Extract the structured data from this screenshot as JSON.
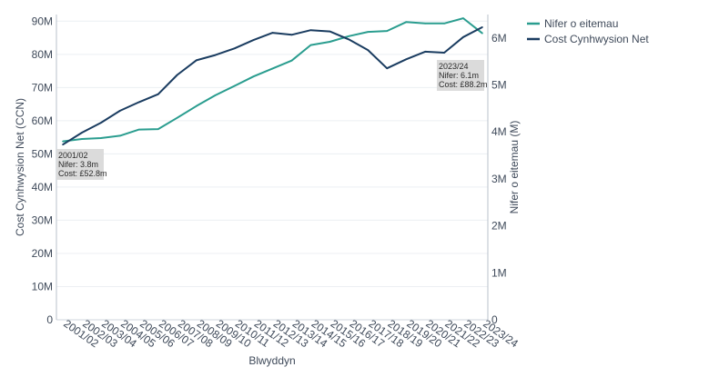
{
  "chart_data": {
    "type": "line",
    "xlabel": "Blwyddyn",
    "ylabel": "Cost Cynhwysion Net (CCN)",
    "y2label": "Nifer o eitemau (M)",
    "ylim": [
      0,
      92000000
    ],
    "y2lim": [
      0,
      6.5
    ],
    "yticks": [
      {
        "value": 0,
        "label": "0"
      },
      {
        "value": 10000000,
        "label": "10M"
      },
      {
        "value": 20000000,
        "label": "20M"
      },
      {
        "value": 30000000,
        "label": "30M"
      },
      {
        "value": 40000000,
        "label": "40M"
      },
      {
        "value": 50000000,
        "label": "50M"
      },
      {
        "value": 60000000,
        "label": "60M"
      },
      {
        "value": 70000000,
        "label": "70M"
      },
      {
        "value": 80000000,
        "label": "80M"
      },
      {
        "value": 90000000,
        "label": "90M"
      }
    ],
    "y2ticks": [
      {
        "value": 0,
        "label": "0"
      },
      {
        "value": 1,
        "label": "1M"
      },
      {
        "value": 2,
        "label": "2M"
      },
      {
        "value": 3,
        "label": "3M"
      },
      {
        "value": 4,
        "label": "4M"
      },
      {
        "value": 5,
        "label": "5M"
      },
      {
        "value": 6,
        "label": "6M"
      }
    ],
    "categories": [
      "2001/02",
      "2002/03",
      "2003/04",
      "2004/05",
      "2005/06",
      "2006/07",
      "2007/08",
      "2008/09",
      "2009/10",
      "2010/11",
      "2011/12",
      "2012/13",
      "2013/14",
      "2014/15",
      "2015/16",
      "2016/17",
      "2017/18",
      "2018/19",
      "2019/20",
      "2020/21",
      "2021/22",
      "2022/23",
      "2023/24"
    ],
    "grid": true,
    "legend_position": "top-right",
    "series": [
      {
        "name": "Nifer o eitemau",
        "axis": "right",
        "color": "#2a9d8f",
        "values": [
          3.8,
          3.85,
          3.87,
          3.92,
          4.05,
          4.06,
          4.3,
          4.55,
          4.78,
          4.98,
          5.18,
          5.35,
          5.52,
          5.85,
          5.92,
          6.04,
          6.13,
          6.15,
          6.34,
          6.31,
          6.31,
          6.42,
          6.1
        ]
      },
      {
        "name": "Cost Cynhwysion Net",
        "axis": "left",
        "color": "#1a3c60",
        "values": [
          52800000,
          56400000,
          59400000,
          63000000,
          65600000,
          68000000,
          73800000,
          78200000,
          79800000,
          81800000,
          84300000,
          86500000,
          85900000,
          87300000,
          86900000,
          84500000,
          81300000,
          75800000,
          78500000,
          80800000,
          80500000,
          85200000,
          88200000
        ]
      }
    ],
    "annotations": [
      {
        "index": 0,
        "side": "below",
        "lines": [
          "2001/02",
          "Nifer: 3.8m",
          "Cost: £52.8m"
        ]
      },
      {
        "index": 22,
        "side": "below-left",
        "lines": [
          "2023/24",
          "Nifer: 6.1m",
          "Cost: £88.2m"
        ]
      }
    ]
  }
}
